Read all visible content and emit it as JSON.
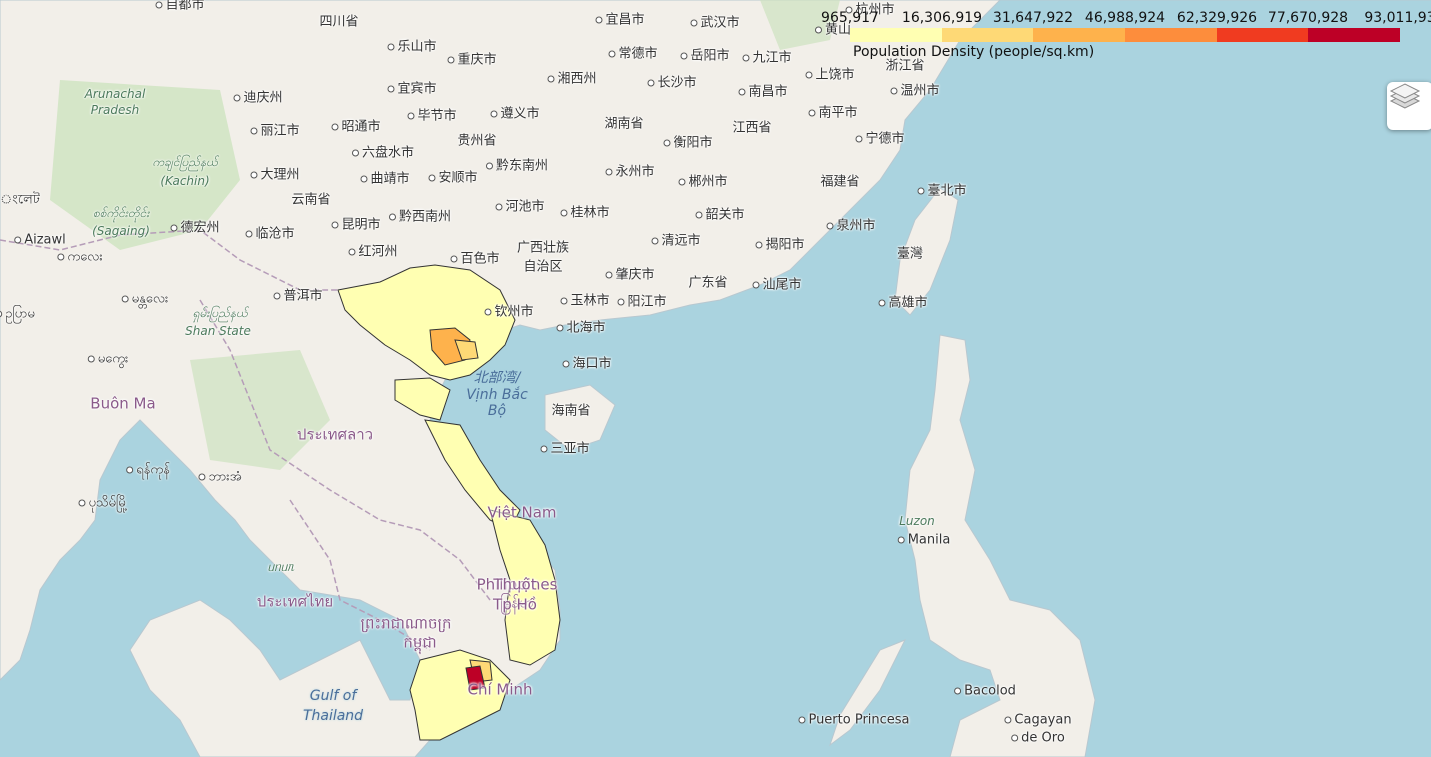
{
  "legend": {
    "ticks": [
      "965,917",
      "16,306,919",
      "31,647,922",
      "46,988,924",
      "62,329,926",
      "77,670,928",
      "93,011,93"
    ],
    "caption": "Population Density (people/sq.km)",
    "colors": [
      "#ffffb2",
      "#fed976",
      "#feb24c",
      "#fd8d3c",
      "#f03b20",
      "#bd0026"
    ]
  },
  "layers_control": {
    "icon": "layers-icon"
  },
  "labels": {
    "city": [
      "自都市",
      "宜昌市",
      "武汉市",
      "杭州市",
      "乐山市",
      "重庆市",
      "常德市",
      "岳阳市",
      "九江市",
      "黄山",
      "宜宾市",
      "湘西州",
      "长沙市",
      "上饶市",
      "迪庆州",
      "毕节市",
      "遵义市",
      "南昌市",
      "温州市",
      "昭通市",
      "丽江市",
      "衡阳市",
      "南平市",
      "宁德市",
      "六盘水市",
      "黔东南州",
      "永州市",
      "大理州",
      "曲靖市",
      "安顺市",
      "郴州市",
      "臺北市",
      "河池市",
      "桂林市",
      "韶关市",
      "德宏州",
      "昆明市",
      "黔西南州",
      "临沧市",
      "清远市",
      "揭阳市",
      "泉州市",
      "红河州",
      "百色市",
      "肇庆市",
      "普洱市",
      "玉林市",
      "阳江市",
      "汕尾市",
      "高雄市",
      "钦州市",
      "北海市",
      "海口市",
      "三亚市",
      "Manila",
      "Puerto Princesa",
      "Bacolod",
      "Cagayan",
      "de Oro",
      "Aizawl",
      "ကလေး",
      "မန္တလေး",
      "မကွေး",
      "ရန်ကုန်",
      "ဘားအံ",
      "ပုသိမ်မြို့",
      "ဥပြာမ",
      "ংলেট"
    ],
    "province": [
      "四川省",
      "贵州省",
      "湖南省",
      "江西省",
      "浙江省",
      "福建省",
      "云南省",
      "广东省",
      "广西壮族",
      "自治区",
      "海南省",
      "臺灣"
    ],
    "country": [
      "ประเทศลาว",
      "Việt Nam",
      "ประเทศไทย",
      "ព្រះរាជាណាចក្រ",
      "កម្ពុជា",
      "Philippines",
      "မြန်မာ",
      "Buôn Ma",
      "Thuột",
      "Tp Hồ",
      "Chí Minh"
    ],
    "water": [
      "北部湾/",
      "Vịnh Bắc",
      "Bộ",
      "Gulf of",
      "Thailand"
    ],
    "region": [
      "Arunachal",
      "Pradesh",
      "ကချင်ပြည်နယ်",
      "(Kachin)",
      "စစ်ကိုင်းတိုင်း",
      "(Sagaing)",
      "ရှမ်းပြည်နယ်",
      "Shan State",
      "Luzon",
      "ᥙᥒᥙᥰ"
    ]
  }
}
